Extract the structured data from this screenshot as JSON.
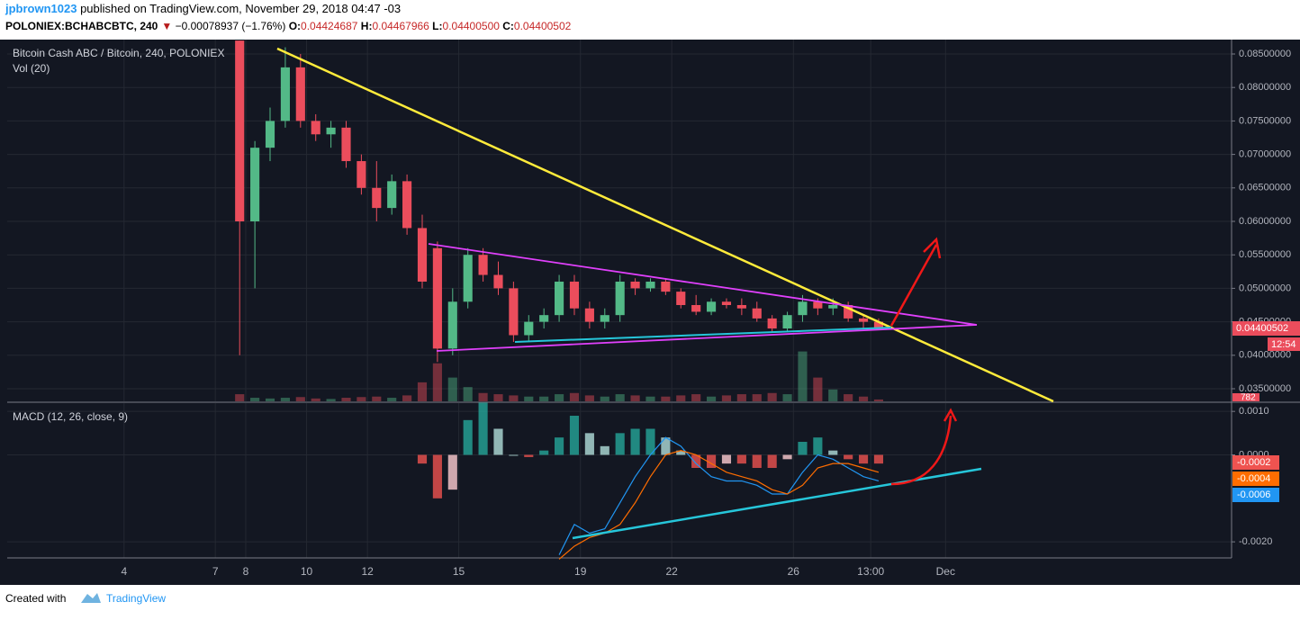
{
  "header": {
    "author": "jpbrown1023",
    "published": " published on TradingView.com, November 29, 2018 04:47 -03",
    "symbol": "POLONIEX:BCHABCBTC, 240",
    "arrow": "▼",
    "change": " −0.00078937 (−1.76%)",
    "o_label": " O:",
    "o": "0.04424687",
    "h_label": " H:",
    "h": "0.04467966",
    "l_label": " L:",
    "l": "0.04400500",
    "c_label": " C:",
    "c": "0.04400502"
  },
  "chart_data": [
    {
      "type": "candlestick",
      "title": "Bitcoin Cash ABC / Bitcoin, 240, POLONIEX",
      "volume_title": "Vol (20)",
      "up_color": "#53b987",
      "down_color": "#eb4d5c",
      "countdown": "12:54",
      "x": [
        7.8,
        8.3,
        8.8,
        9.3,
        9.8,
        10.3,
        10.8,
        11.3,
        11.8,
        12.3,
        12.8,
        13.3,
        13.8,
        14.3,
        14.8,
        15.3,
        15.8,
        16.3,
        16.8,
        17.3,
        17.8,
        18.3,
        18.8,
        19.3,
        19.8,
        20.3,
        20.8,
        21.3,
        21.8,
        22.3,
        22.8,
        23.3,
        23.8,
        24.3,
        24.8,
        25.3,
        25.8,
        26.3,
        26.8,
        27.3,
        27.8,
        28.3,
        28.8
      ],
      "open": [
        0.087,
        0.06,
        0.071,
        0.075,
        0.083,
        0.075,
        0.073,
        0.074,
        0.069,
        0.065,
        0.062,
        0.066,
        0.059,
        0.056,
        0.041,
        0.048,
        0.055,
        0.052,
        0.05,
        0.043,
        0.045,
        0.046,
        0.051,
        0.047,
        0.045,
        0.046,
        0.051,
        0.05,
        0.051,
        0.0495,
        0.0475,
        0.0465,
        0.048,
        0.0475,
        0.047,
        0.0455,
        0.044,
        0.046,
        0.048,
        0.047,
        0.0475,
        0.0455,
        0.045
      ],
      "high": [
        0.087,
        0.072,
        0.077,
        0.086,
        0.085,
        0.076,
        0.075,
        0.075,
        0.07,
        0.069,
        0.067,
        0.067,
        0.061,
        0.057,
        0.05,
        0.056,
        0.056,
        0.054,
        0.051,
        0.046,
        0.047,
        0.052,
        0.052,
        0.048,
        0.047,
        0.052,
        0.0515,
        0.0515,
        0.0515,
        0.05,
        0.049,
        0.0485,
        0.0485,
        0.0485,
        0.048,
        0.046,
        0.0465,
        0.049,
        0.0485,
        0.0485,
        0.048,
        0.046,
        0.0455
      ],
      "low": [
        0.04,
        0.05,
        0.069,
        0.074,
        0.074,
        0.072,
        0.071,
        0.068,
        0.064,
        0.06,
        0.061,
        0.058,
        0.05,
        0.039,
        0.04,
        0.047,
        0.051,
        0.049,
        0.042,
        0.042,
        0.044,
        0.045,
        0.046,
        0.044,
        0.044,
        0.045,
        0.049,
        0.0495,
        0.049,
        0.047,
        0.046,
        0.046,
        0.047,
        0.046,
        0.045,
        0.0435,
        0.0435,
        0.045,
        0.046,
        0.046,
        0.045,
        0.044,
        0.044
      ],
      "close": [
        0.06,
        0.071,
        0.075,
        0.083,
        0.075,
        0.073,
        0.074,
        0.069,
        0.065,
        0.062,
        0.066,
        0.059,
        0.051,
        0.041,
        0.048,
        0.055,
        0.052,
        0.05,
        0.043,
        0.045,
        0.046,
        0.051,
        0.047,
        0.045,
        0.046,
        0.051,
        0.05,
        0.051,
        0.0495,
        0.0475,
        0.0465,
        0.048,
        0.0475,
        0.047,
        0.0455,
        0.044,
        0.046,
        0.048,
        0.047,
        0.0475,
        0.0455,
        0.045,
        0.04400502
      ],
      "volume": [
        3000,
        1500,
        1200,
        1500,
        1800,
        1200,
        1000,
        1500,
        1800,
        2000,
        1500,
        2500,
        8000,
        16000,
        10000,
        6000,
        3500,
        3000,
        2500,
        2000,
        2000,
        3000,
        3500,
        2500,
        2000,
        3000,
        2500,
        2000,
        2000,
        2500,
        3000,
        2000,
        2500,
        3000,
        3000,
        3500,
        3000,
        21000,
        10000,
        5000,
        3000,
        2000,
        782
      ],
      "vlim": [
        0,
        25000
      ],
      "xlim": [
        0.16,
        40.4
      ],
      "xticks": [
        8,
        12,
        15,
        19,
        22,
        26,
        {
          "value": 28.54,
          "label": "13:00"
        },
        {
          "value": 31,
          "label": "Dec"
        },
        4,
        7,
        10
      ],
      "ylim": [
        0.03312,
        0.08715
      ],
      "yticks": [
        {
          "value": 0.085,
          "label": "0.08500000"
        },
        {
          "value": 0.08,
          "label": "0.08000000"
        },
        {
          "value": 0.075,
          "label": "0.07500000"
        },
        {
          "value": 0.07,
          "label": "0.07000000"
        },
        {
          "value": 0.065,
          "label": "0.06500000"
        },
        {
          "value": 0.06,
          "label": "0.06000000"
        },
        {
          "value": 0.055,
          "label": "0.05500000"
        },
        {
          "value": 0.05,
          "label": "0.05000000"
        },
        {
          "value": 0.045,
          "label": "0.04500000"
        },
        {
          "value": 0.04,
          "label": "0.04000000"
        },
        {
          "value": 0.035,
          "label": "0.03500000"
        }
      ],
      "grid": true
    },
    {
      "type": "macd",
      "title": "MACD (12, 26, close, 9)",
      "macd_color": "#2196f3",
      "signal_color": "#ff6d00",
      "hist_colors": [
        "#26a69a",
        "#b2dfdb",
        "#ef5350",
        "#ffcdd2"
      ],
      "histogram": [
        null,
        null,
        null,
        null,
        null,
        null,
        null,
        null,
        null,
        null,
        null,
        null,
        -0.0002,
        -0.001,
        -0.0008,
        0.0008,
        0.0012,
        0.0006,
        0.0,
        -5e-05,
        0.0001,
        0.0004,
        0.0009,
        0.0005,
        0.0002,
        0.0005,
        0.0006,
        0.0006,
        0.0004,
        0.0001,
        -0.0003,
        -0.0003,
        -0.0002,
        -0.0002,
        -0.0003,
        -0.0003,
        -0.0001,
        0.0003,
        0.0004,
        0.0001,
        -0.0001,
        -0.0002,
        -0.0002
      ],
      "macd": [
        null,
        null,
        null,
        null,
        null,
        null,
        null,
        null,
        null,
        null,
        null,
        null,
        null,
        null,
        null,
        null,
        null,
        null,
        null,
        null,
        null,
        -0.0023,
        -0.0016,
        -0.0018,
        -0.0017,
        -0.0011,
        -0.0005,
        0.0,
        0.0004,
        0.0002,
        -0.0002,
        -0.0005,
        -0.0006,
        -0.0006,
        -0.0007,
        -0.0009,
        -0.0009,
        -0.0004,
        0.0,
        -0.0001,
        -0.0003,
        -0.0005,
        -0.0006
      ],
      "signal": [
        null,
        null,
        null,
        null,
        null,
        null,
        null,
        null,
        null,
        null,
        null,
        null,
        null,
        null,
        null,
        null,
        null,
        null,
        null,
        null,
        null,
        -0.0024,
        -0.0021,
        -0.0019,
        -0.0018,
        -0.0016,
        -0.0011,
        -0.0005,
        0.0,
        0.0001,
        0.0,
        -0.0002,
        -0.0004,
        -0.0005,
        -0.0006,
        -0.0008,
        -0.0009,
        -0.0007,
        -0.0003,
        -0.0002,
        -0.0002,
        -0.0003,
        -0.0004
      ],
      "ylim": [
        -0.00237,
        0.00119
      ],
      "yticks": [
        {
          "value": 0.001,
          "label": "0.0010"
        },
        {
          "value": 0.0,
          "label": "0.0000"
        },
        {
          "value": -0.002,
          "label": "-0.0020"
        }
      ],
      "grid": true
    }
  ],
  "footer": {
    "created": "Created with",
    "brand": "TradingView"
  }
}
